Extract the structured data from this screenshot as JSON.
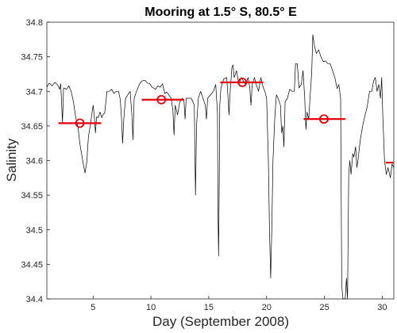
{
  "chart_data": {
    "type": "line",
    "title": "Mooring at 1.5° S, 80.5° E",
    "xlabel": "Day (September 2008)",
    "ylabel": "Salinity",
    "xlim": [
      1,
      31
    ],
    "ylim": [
      34.4,
      34.8
    ],
    "x_ticks": [
      5,
      10,
      15,
      20,
      25,
      30
    ],
    "y_ticks": [
      34.4,
      34.45,
      34.5,
      34.55,
      34.6,
      34.65,
      34.7,
      34.75,
      34.8
    ],
    "grid": false,
    "colors": {
      "line": "#000000",
      "marker": "#e8000b"
    },
    "series": [
      {
        "type": "line",
        "points": [
          [
            1.0,
            34.706
          ],
          [
            1.2,
            34.712
          ],
          [
            1.45,
            34.708
          ],
          [
            1.7,
            34.713
          ],
          [
            1.95,
            34.709
          ],
          [
            2.1,
            34.703
          ],
          [
            2.2,
            34.711
          ],
          [
            2.35,
            34.655
          ],
          [
            2.45,
            34.705
          ],
          [
            2.7,
            34.703
          ],
          [
            2.9,
            34.708
          ],
          [
            3.1,
            34.7
          ],
          [
            3.3,
            34.685
          ],
          [
            3.5,
            34.662
          ],
          [
            3.7,
            34.648
          ],
          [
            3.85,
            34.625
          ],
          [
            4.0,
            34.61
          ],
          [
            4.15,
            34.595
          ],
          [
            4.3,
            34.582
          ],
          [
            4.45,
            34.598
          ],
          [
            4.6,
            34.635
          ],
          [
            4.75,
            34.65
          ],
          [
            4.9,
            34.668
          ],
          [
            5.0,
            34.68
          ],
          [
            5.1,
            34.665
          ],
          [
            5.2,
            34.64
          ],
          [
            5.3,
            34.663
          ],
          [
            5.45,
            34.662
          ],
          [
            5.6,
            34.67
          ],
          [
            5.75,
            34.662
          ],
          [
            5.9,
            34.668
          ],
          [
            6.0,
            34.668
          ],
          [
            6.2,
            34.7
          ],
          [
            6.4,
            34.7
          ],
          [
            6.6,
            34.703
          ],
          [
            6.8,
            34.697
          ],
          [
            7.0,
            34.7
          ],
          [
            7.2,
            34.7
          ],
          [
            7.35,
            34.688
          ],
          [
            7.45,
            34.662
          ],
          [
            7.55,
            34.625
          ],
          [
            7.65,
            34.66
          ],
          [
            7.8,
            34.69
          ],
          [
            8.0,
            34.695
          ],
          [
            8.2,
            34.7
          ],
          [
            8.35,
            34.666
          ],
          [
            8.45,
            34.63
          ],
          [
            8.55,
            34.69
          ],
          [
            8.75,
            34.7
          ],
          [
            9.0,
            34.71
          ],
          [
            9.2,
            34.715
          ],
          [
            9.5,
            34.716
          ],
          [
            9.7,
            34.712
          ],
          [
            9.9,
            34.711
          ],
          [
            10.1,
            34.706
          ],
          [
            10.4,
            34.703
          ],
          [
            10.6,
            34.708
          ],
          [
            10.8,
            34.706
          ],
          [
            11.0,
            34.711
          ],
          [
            11.2,
            34.697
          ],
          [
            11.35,
            34.699
          ],
          [
            11.5,
            34.696
          ],
          [
            11.75,
            34.69
          ],
          [
            11.9,
            34.672
          ],
          [
            12.0,
            34.637
          ],
          [
            12.1,
            34.68
          ],
          [
            12.3,
            34.666
          ],
          [
            12.5,
            34.685
          ],
          [
            12.7,
            34.69
          ],
          [
            12.85,
            34.688
          ],
          [
            12.95,
            34.66
          ],
          [
            13.05,
            34.69
          ],
          [
            13.3,
            34.69
          ],
          [
            13.5,
            34.69
          ],
          [
            13.75,
            34.68
          ],
          [
            13.85,
            34.55
          ],
          [
            13.95,
            34.652
          ],
          [
            14.1,
            34.69
          ],
          [
            14.3,
            34.7
          ],
          [
            14.5,
            34.69
          ],
          [
            14.7,
            34.68
          ],
          [
            14.8,
            34.66
          ],
          [
            14.9,
            34.69
          ],
          [
            15.15,
            34.695
          ],
          [
            15.4,
            34.7
          ],
          [
            15.6,
            34.71
          ],
          [
            15.75,
            34.668
          ],
          [
            15.8,
            34.52
          ],
          [
            15.85,
            34.462
          ],
          [
            15.9,
            34.55
          ],
          [
            15.95,
            34.68
          ],
          [
            16.05,
            34.705
          ],
          [
            16.3,
            34.718
          ],
          [
            16.55,
            34.72
          ],
          [
            16.65,
            34.695
          ],
          [
            16.75,
            34.666
          ],
          [
            16.85,
            34.7
          ],
          [
            17.0,
            34.735
          ],
          [
            17.1,
            34.738
          ],
          [
            17.2,
            34.72
          ],
          [
            17.4,
            34.73
          ],
          [
            17.6,
            34.71
          ],
          [
            17.8,
            34.72
          ],
          [
            18.0,
            34.715
          ],
          [
            18.2,
            34.71
          ],
          [
            18.4,
            34.72
          ],
          [
            18.55,
            34.705
          ],
          [
            18.65,
            34.68
          ],
          [
            18.75,
            34.71
          ],
          [
            18.95,
            34.72
          ],
          [
            19.1,
            34.71
          ],
          [
            19.3,
            34.7
          ],
          [
            19.5,
            34.72
          ],
          [
            19.7,
            34.706
          ],
          [
            19.85,
            34.7
          ],
          [
            20.0,
            34.69
          ],
          [
            20.15,
            34.6
          ],
          [
            20.25,
            34.5
          ],
          [
            20.35,
            34.43
          ],
          [
            20.45,
            34.5
          ],
          [
            20.55,
            34.6
          ],
          [
            20.7,
            34.66
          ],
          [
            20.85,
            34.695
          ],
          [
            21.0,
            34.69
          ],
          [
            21.2,
            34.68
          ],
          [
            21.3,
            34.64
          ],
          [
            21.4,
            34.65
          ],
          [
            21.5,
            34.62
          ],
          [
            21.6,
            34.685
          ],
          [
            21.8,
            34.69
          ],
          [
            22.0,
            34.703
          ],
          [
            22.2,
            34.7
          ],
          [
            22.4,
            34.7
          ],
          [
            22.5,
            34.74
          ],
          [
            22.65,
            34.74
          ],
          [
            22.8,
            34.705
          ],
          [
            23.0,
            34.71
          ],
          [
            23.15,
            34.73
          ],
          [
            23.3,
            34.69
          ],
          [
            23.4,
            34.645
          ],
          [
            23.5,
            34.67
          ],
          [
            23.65,
            34.66
          ],
          [
            23.75,
            34.69
          ],
          [
            23.9,
            34.728
          ],
          [
            24.0,
            34.782
          ],
          [
            24.05,
            34.775
          ],
          [
            24.15,
            34.765
          ],
          [
            24.3,
            34.755
          ],
          [
            24.5,
            34.76
          ],
          [
            24.7,
            34.75
          ],
          [
            24.9,
            34.743
          ],
          [
            25.1,
            34.744
          ],
          [
            25.3,
            34.74
          ],
          [
            25.5,
            34.74
          ],
          [
            25.7,
            34.73
          ],
          [
            25.9,
            34.72
          ],
          [
            26.1,
            34.704
          ],
          [
            26.25,
            34.71
          ],
          [
            26.4,
            34.69
          ],
          [
            26.5,
            34.42
          ],
          [
            26.6,
            34.4
          ],
          [
            26.8,
            34.4
          ],
          [
            26.9,
            34.43
          ],
          [
            27.0,
            34.4
          ],
          [
            27.1,
            34.58
          ],
          [
            27.2,
            34.6
          ],
          [
            27.3,
            34.58
          ],
          [
            27.45,
            34.61
          ],
          [
            27.55,
            34.605
          ],
          [
            27.7,
            34.62
          ],
          [
            27.8,
            34.59
          ],
          [
            27.9,
            34.6
          ],
          [
            28.1,
            34.63
          ],
          [
            28.3,
            34.65
          ],
          [
            28.5,
            34.665
          ],
          [
            28.7,
            34.678
          ],
          [
            28.9,
            34.7
          ],
          [
            29.1,
            34.7
          ],
          [
            29.25,
            34.715
          ],
          [
            29.4,
            34.72
          ],
          [
            29.55,
            34.7
          ],
          [
            29.7,
            34.71
          ],
          [
            29.85,
            34.69
          ],
          [
            29.95,
            34.72
          ],
          [
            30.05,
            34.662
          ],
          [
            30.2,
            34.6
          ],
          [
            30.35,
            34.58
          ],
          [
            30.5,
            34.59
          ],
          [
            30.7,
            34.575
          ],
          [
            30.85,
            34.595
          ],
          [
            31.0,
            34.59
          ]
        ]
      },
      {
        "type": "weekly-mean",
        "ranges": [
          [
            2.0,
            5.7
          ],
          [
            9.2,
            12.8
          ],
          [
            16.0,
            19.7
          ],
          [
            23.2,
            26.8
          ],
          [
            30.3,
            31.0
          ]
        ],
        "values": [
          34.654,
          34.688,
          34.713,
          34.66,
          34.597
        ],
        "marker_x": [
          3.85,
          10.9,
          17.9,
          24.95
        ]
      }
    ]
  }
}
